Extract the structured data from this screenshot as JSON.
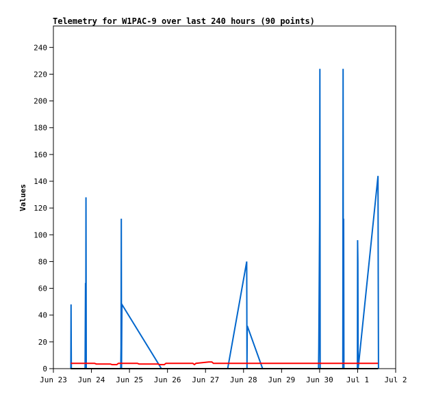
{
  "chart_data": {
    "type": "line",
    "title": "Telemetry for W1PAC-9 over last 240 hours (90 points)",
    "xlabel": "",
    "ylabel": "Values",
    "xlim": [
      "2025-06-23",
      "2025-07-02"
    ],
    "ylim": [
      0,
      256
    ],
    "x_ticks": [
      "Jun 23",
      "Jun 24",
      "Jun 25",
      "Jun 26",
      "Jun 27",
      "Jun 28",
      "Jun 29",
      "Jun 30",
      "Jul 1",
      "Jul 2"
    ],
    "y_ticks": [
      0,
      20,
      40,
      60,
      80,
      100,
      120,
      140,
      160,
      180,
      200,
      220,
      240
    ],
    "grid": false,
    "legend": "none",
    "series": [
      {
        "color": "#0066cc",
        "points": [
          {
            "x": "2025-06-23 11:00",
            "y": 0
          },
          {
            "x": "2025-06-23 11:10",
            "y": 48
          },
          {
            "x": "2025-06-23 11:20",
            "y": 0
          },
          {
            "x": "2025-06-23 20:00",
            "y": 0
          },
          {
            "x": "2025-06-23 20:15",
            "y": 64
          },
          {
            "x": "2025-06-23 20:25",
            "y": 0
          },
          {
            "x": "2025-06-23 20:35",
            "y": 128
          },
          {
            "x": "2025-06-23 20:45",
            "y": 0
          },
          {
            "x": "2025-06-24 18:30",
            "y": 0
          },
          {
            "x": "2025-06-24 18:40",
            "y": 16
          },
          {
            "x": "2025-06-24 18:50",
            "y": 112
          },
          {
            "x": "2025-06-24 19:00",
            "y": 0
          },
          {
            "x": "2025-06-24 19:15",
            "y": 48
          },
          {
            "x": "2025-06-25 20:10",
            "y": 0
          },
          {
            "x": "2025-06-27 14:00",
            "y": 0
          },
          {
            "x": "2025-06-28 02:00",
            "y": 80
          },
          {
            "x": "2025-06-28 02:10",
            "y": 0
          },
          {
            "x": "2025-06-28 02:20",
            "y": 32
          },
          {
            "x": "2025-06-28 12:00",
            "y": 0
          },
          {
            "x": "2025-06-29 23:20",
            "y": 0
          },
          {
            "x": "2025-06-29 23:30",
            "y": 16
          },
          {
            "x": "2025-06-29 23:40",
            "y": 48
          },
          {
            "x": "2025-06-29 23:50",
            "y": 80
          },
          {
            "x": "2025-06-30 00:00",
            "y": 112
          },
          {
            "x": "2025-06-30 00:10",
            "y": 224
          },
          {
            "x": "2025-06-30 00:20",
            "y": 0
          },
          {
            "x": "2025-06-30 14:40",
            "y": 0
          },
          {
            "x": "2025-06-30 14:50",
            "y": 224
          },
          {
            "x": "2025-06-30 15:00",
            "y": 0
          },
          {
            "x": "2025-06-30 15:10",
            "y": 112
          },
          {
            "x": "2025-06-30 15:20",
            "y": 0
          },
          {
            "x": "2025-06-30 23:50",
            "y": 0
          },
          {
            "x": "2025-07-01 00:00",
            "y": 96
          },
          {
            "x": "2025-07-01 00:10",
            "y": 80
          },
          {
            "x": "2025-07-01 00:20",
            "y": 0
          },
          {
            "x": "2025-07-01 12:50",
            "y": 144
          },
          {
            "x": "2025-07-01 13:00",
            "y": 72
          },
          {
            "x": "2025-07-01 13:10",
            "y": 0
          }
        ]
      },
      {
        "color": "#ff0000",
        "points": [
          {
            "x": "2025-06-23 11:00",
            "y": 4.0
          },
          {
            "x": "2025-06-24 02:00",
            "y": 4.0
          },
          {
            "x": "2025-06-24 03:00",
            "y": 3.5
          },
          {
            "x": "2025-06-24 12:00",
            "y": 3.5
          },
          {
            "x": "2025-06-24 13:00",
            "y": 3.0
          },
          {
            "x": "2025-06-24 16:00",
            "y": 3.0
          },
          {
            "x": "2025-06-24 17:00",
            "y": 4.0
          },
          {
            "x": "2025-06-25 05:00",
            "y": 4.0
          },
          {
            "x": "2025-06-25 06:00",
            "y": 3.5
          },
          {
            "x": "2025-06-25 18:00",
            "y": 3.5
          },
          {
            "x": "2025-06-25 19:00",
            "y": 3.0
          },
          {
            "x": "2025-06-25 22:00",
            "y": 3.0
          },
          {
            "x": "2025-06-25 23:00",
            "y": 4.0
          },
          {
            "x": "2025-06-26 16:00",
            "y": 4.0
          },
          {
            "x": "2025-06-26 17:00",
            "y": 3.0
          },
          {
            "x": "2025-06-26 18:00",
            "y": 4.0
          },
          {
            "x": "2025-06-26 22:00",
            "y": 4.5
          },
          {
            "x": "2025-06-27 02:00",
            "y": 5.0
          },
          {
            "x": "2025-06-27 04:00",
            "y": 5.0
          },
          {
            "x": "2025-06-27 05:00",
            "y": 4.0
          },
          {
            "x": "2025-07-01 12:50",
            "y": 4.0
          }
        ]
      },
      {
        "color": "#000000",
        "points": [
          {
            "x": "2025-06-23 11:00",
            "y": 0
          },
          {
            "x": "2025-07-01 12:50",
            "y": 0
          }
        ]
      }
    ]
  }
}
